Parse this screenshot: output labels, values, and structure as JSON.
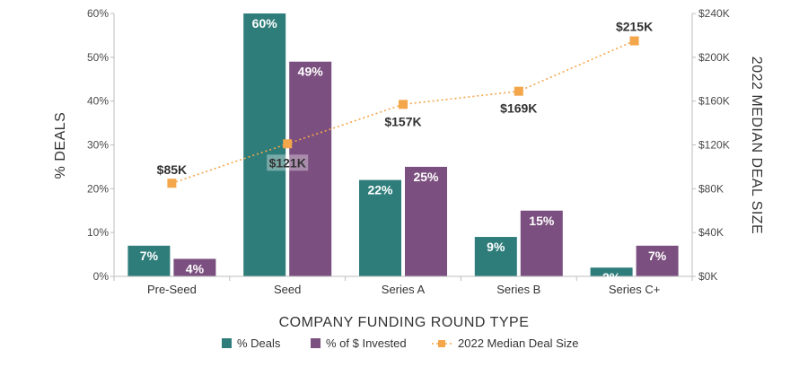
{
  "chart_data": {
    "type": "bar",
    "title": "",
    "xlabel": "COMPANY FUNDING ROUND TYPE",
    "ylabel": "% DEALS",
    "y2label": "2022 MEDIAN DEAL SIZE",
    "categories": [
      "Pre-Seed",
      "Seed",
      "Series A",
      "Series B",
      "Series C+"
    ],
    "ylim": [
      0,
      60
    ],
    "yticks": [
      "0%",
      "10%",
      "20%",
      "30%",
      "40%",
      "50%",
      "60%"
    ],
    "y2lim": [
      0,
      240
    ],
    "y2ticks": [
      "$0K",
      "$40K",
      "$80K",
      "$120K",
      "$160K",
      "$200K",
      "$240K"
    ],
    "series": [
      {
        "name": "% Deals",
        "kind": "bar",
        "color": "#2e7d7a",
        "values": [
          7,
          60,
          22,
          9,
          2
        ],
        "labels": [
          "7%",
          "60%",
          "22%",
          "9%",
          "2%"
        ]
      },
      {
        "name": "% of $ Invested",
        "kind": "bar",
        "color": "#7b4f7f",
        "values": [
          4,
          49,
          25,
          15,
          7
        ],
        "labels": [
          "4%",
          "49%",
          "25%",
          "15%",
          "7%"
        ]
      },
      {
        "name": "2022 Median Deal Size",
        "kind": "line",
        "axis": "right",
        "color": "#f4a64a",
        "style": "dotted",
        "marker": "square",
        "values": [
          85,
          121,
          157,
          169,
          215
        ],
        "labels": [
          "$85K",
          "$121K",
          "$157K",
          "$169K",
          "$215K"
        ]
      }
    ],
    "grid": false,
    "legend": "bottom-center"
  }
}
